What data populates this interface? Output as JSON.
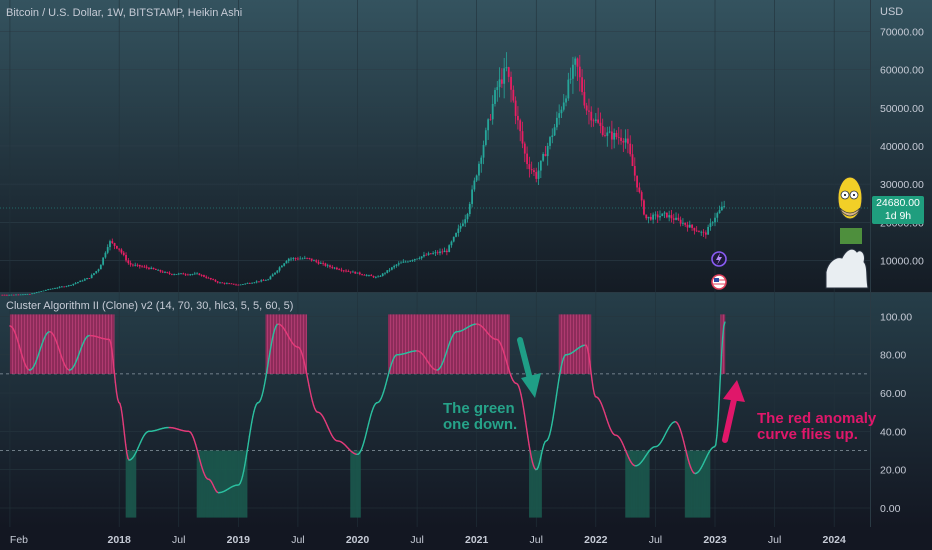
{
  "header": {
    "title": "Bitcoin / U.S. Dollar, 1W, BITSTAMP, Heikin Ashi",
    "currency": "USD",
    "last_price": "24680.00",
    "countdown": "1d 9h"
  },
  "indicator": {
    "title": "Cluster Algorithm II (Clone) v2 (14, 70, 30, hlc3, 5, 5, 60, 5)"
  },
  "annotations": {
    "green_line1": "The green",
    "green_line2": "one down.",
    "red_line1": "The red anomaly",
    "red_line2": "curve flies up."
  },
  "colors": {
    "bull": "#26a69a",
    "bear": "#e91e63",
    "background_top": "#34535f",
    "background_bottom": "#131722"
  },
  "chart_data": [
    {
      "type": "candlestick",
      "title": "Bitcoin / U.S. Dollar, 1W, BITSTAMP, Heikin Ashi",
      "y_tick_labels": [
        "10000.00",
        "20000.00",
        "30000.00",
        "40000.00",
        "50000.00",
        "60000.00",
        "70000.00"
      ],
      "x_tick_labels": [
        "Feb",
        "2018",
        "Jul",
        "2019",
        "Jul",
        "2020",
        "Jul",
        "2021",
        "Jul",
        "2022",
        "Jul",
        "2023",
        "Jul",
        "2024"
      ],
      "ylim": [
        0,
        72000
      ],
      "last_value": 24680,
      "x": [
        "2017-02",
        "2017-04",
        "2017-06",
        "2017-08",
        "2017-10",
        "2017-11",
        "2017-12",
        "2018-01",
        "2018-02",
        "2018-04",
        "2018-06",
        "2018-09",
        "2018-11",
        "2019-01",
        "2019-04",
        "2019-06",
        "2019-08",
        "2019-10",
        "2019-12",
        "2020-03",
        "2020-05",
        "2020-08",
        "2020-10",
        "2020-12",
        "2021-01",
        "2021-03",
        "2021-04",
        "2021-06",
        "2021-07",
        "2021-09",
        "2021-11",
        "2021-12",
        "2022-02",
        "2022-04",
        "2022-06",
        "2022-08",
        "2022-10",
        "2022-12",
        "2023-01",
        "2023-02"
      ],
      "values": [
        1000,
        1200,
        2500,
        3500,
        5500,
        8000,
        15000,
        13000,
        9000,
        8000,
        6500,
        6400,
        4200,
        3600,
        5000,
        10500,
        10500,
        8500,
        7200,
        5500,
        9000,
        11500,
        12500,
        22000,
        33000,
        55000,
        60000,
        36000,
        32000,
        46000,
        62000,
        50000,
        43000,
        42000,
        21000,
        22000,
        19500,
        16800,
        21500,
        24680
      ]
    },
    {
      "type": "line",
      "title": "Cluster Algorithm II (Clone) v2 (14, 70, 30, hlc3, 5, 5, 60, 5)",
      "y_tick_labels": [
        "0.00",
        "20.00",
        "40.00",
        "60.00",
        "80.00",
        "100.00"
      ],
      "ylim": [
        -5,
        105
      ],
      "levels": [
        30,
        70
      ],
      "x": [
        "2017-02",
        "2017-04",
        "2017-06",
        "2017-08",
        "2017-10",
        "2017-12",
        "2018-01",
        "2018-02",
        "2018-04",
        "2018-06",
        "2018-08",
        "2018-10",
        "2018-11",
        "2019-01",
        "2019-03",
        "2019-05",
        "2019-07",
        "2019-09",
        "2019-11",
        "2020-01",
        "2020-03",
        "2020-05",
        "2020-07",
        "2020-09",
        "2020-11",
        "2021-01",
        "2021-03",
        "2021-05",
        "2021-07",
        "2021-08",
        "2021-10",
        "2021-12",
        "2022-01",
        "2022-03",
        "2022-05",
        "2022-07",
        "2022-09",
        "2022-11",
        "2023-01",
        "2023-02"
      ],
      "values": [
        95,
        72,
        92,
        72,
        90,
        88,
        55,
        25,
        40,
        42,
        40,
        15,
        8,
        12,
        55,
        96,
        84,
        50,
        35,
        28,
        55,
        80,
        82,
        72,
        92,
        96,
        88,
        65,
        20,
        35,
        80,
        85,
        58,
        38,
        22,
        32,
        45,
        18,
        32,
        97
      ]
    }
  ]
}
